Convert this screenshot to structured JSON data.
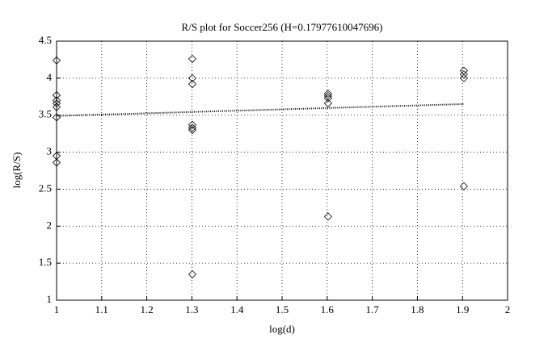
{
  "chart_data": {
    "type": "scatter",
    "title": "R/S plot for Soccer256 (H=0.17977610047696)",
    "x_label": "log(d)",
    "y_label": "log(R/S)",
    "x": [
      1,
      1,
      1,
      1,
      1,
      1,
      1,
      1,
      1.301,
      1.301,
      1.301,
      1.301,
      1.301,
      1.301,
      1.301,
      1.602,
      1.602,
      1.602,
      1.602,
      1.602,
      1.903,
      1.903,
      1.903,
      1.903
    ],
    "y": [
      4.24,
      3.77,
      3.7,
      3.66,
      3.61,
      3.47,
      2.95,
      2.86,
      4.26,
      4.0,
      3.92,
      3.37,
      3.33,
      3.3,
      1.35,
      3.79,
      3.76,
      3.73,
      3.66,
      2.13,
      4.1,
      4.05,
      4.0,
      2.54
    ],
    "fit_x": [
      1,
      1.903
    ],
    "fit_y": [
      3.49,
      3.65
    ],
    "color": "#000000",
    "xlim": [
      1,
      2
    ],
    "xticks": [
      1,
      1.1,
      1.2,
      1.3,
      1.4,
      1.5,
      1.6,
      1.7,
      1.8,
      1.9,
      2
    ],
    "ylim": [
      1,
      4.5
    ],
    "yticks": [
      1,
      1.5,
      2,
      2.5,
      3,
      3.5,
      4,
      4.5
    ],
    "grid": true
  }
}
